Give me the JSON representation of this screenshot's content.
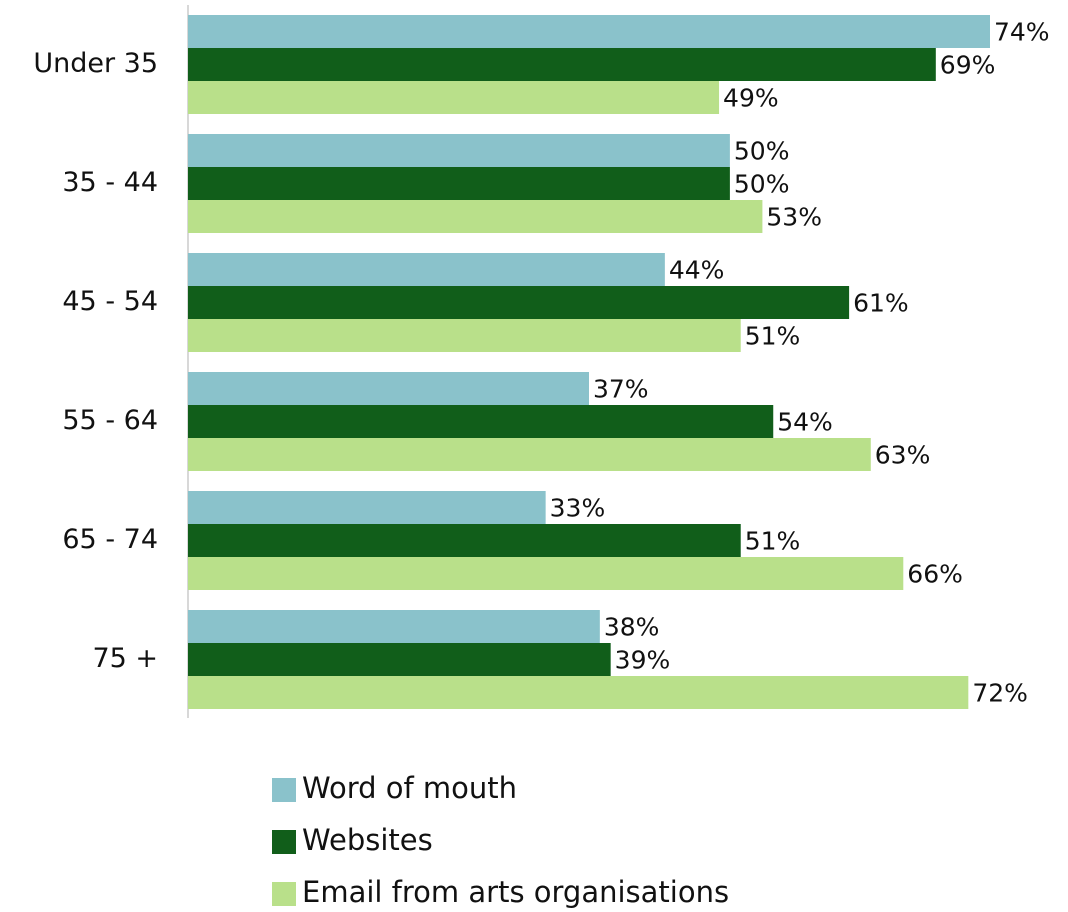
{
  "chart_data": {
    "type": "bar",
    "orientation": "horizontal",
    "categories": [
      "Under 35",
      "35 - 44",
      "45 - 54",
      "55 - 64",
      "65 - 74",
      "75 +"
    ],
    "series": [
      {
        "name": "Word of mouth",
        "color": "#8ac2cb",
        "values": [
          74,
          50,
          44,
          37,
          33,
          38
        ],
        "value_labels": [
          "74%",
          "50%",
          "44%",
          "37%",
          "33%",
          "38%"
        ]
      },
      {
        "name": "Websites",
        "color": "#115e1a",
        "values": [
          69,
          50,
          61,
          54,
          51,
          39
        ],
        "value_labels": [
          "69%",
          "50%",
          "61%",
          "54%",
          "51%",
          "39%"
        ]
      },
      {
        "name": "Email from arts organisations",
        "color": "#b9e08a",
        "values": [
          49,
          53,
          51,
          63,
          66,
          72
        ],
        "value_labels": [
          "49%",
          "53%",
          "51%",
          "63%",
          "66%",
          "72%"
        ]
      }
    ]
  }
}
